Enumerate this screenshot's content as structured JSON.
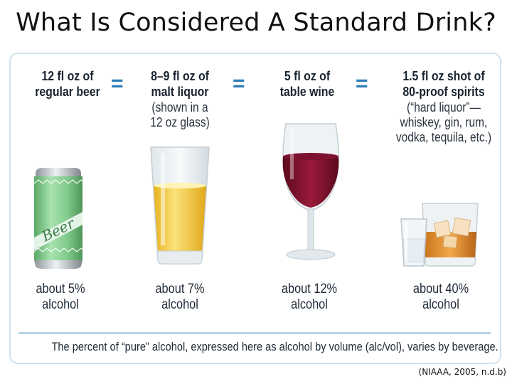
{
  "title": "What Is Considered A Standard Drink?",
  "equals_sign": "=",
  "drinks": [
    {
      "head_line1": "12 fl oz of",
      "head_line2": "regular beer",
      "sub_lines": [],
      "abv_line1": "about 5%",
      "abv_line2": "alcohol",
      "percent": 5,
      "can_label": "Beer"
    },
    {
      "head_line1": "8–9 fl oz of",
      "head_line2": "malt liquor",
      "sub_lines": [
        "(shown in a",
        "12 oz glass)"
      ],
      "abv_line1": "about 7%",
      "abv_line2": "alcohol",
      "percent": 7
    },
    {
      "head_line1": "5 fl oz of",
      "head_line2": "table wine",
      "sub_lines": [],
      "abv_line1": "about 12%",
      "abv_line2": "alcohol",
      "percent": 12
    },
    {
      "head_line1": "1.5 fl oz shot of",
      "head_line2": "80-proof spirits",
      "sub_lines": [
        "(“hard liquor”—",
        "whiskey, gin, rum,",
        "vodka, tequila, etc.)"
      ],
      "abv_line1": "about 40%",
      "abv_line2": "alcohol",
      "percent": 40
    }
  ],
  "footnote": "The percent of “pure” alcohol, expressed here as alcohol by volume (alc/vol), varies by beverage.",
  "citation": "(NIAAA, 2005, n.d.b)",
  "colors": {
    "accent": "#2e7db7",
    "can_green": "#7fc98a",
    "beer": "#f1c52a",
    "wine": "#8a1430",
    "whiskey": "#d98a2b"
  }
}
